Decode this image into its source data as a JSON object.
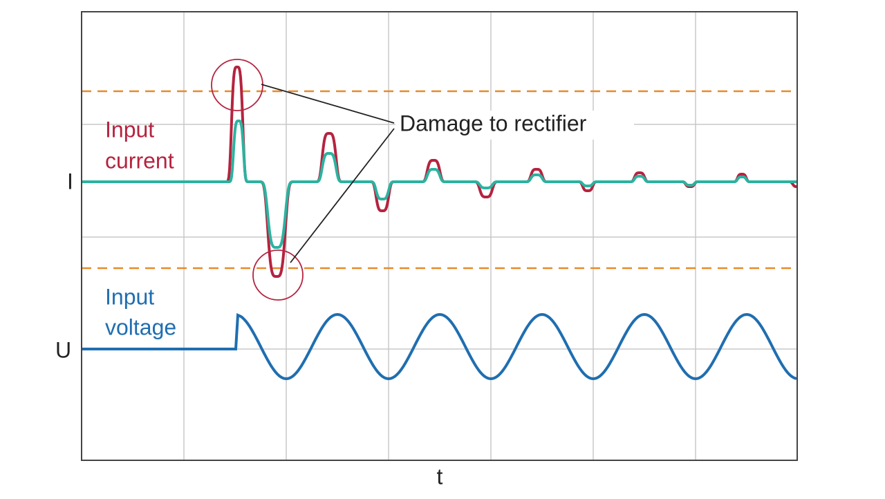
{
  "labels": {
    "current": [
      "Input",
      "current"
    ],
    "voltage": [
      "Input",
      "voltage"
    ],
    "i_axis": "I",
    "u_axis": "U",
    "t_axis": "t",
    "annotation": "Damage to rectifier"
  }
}
